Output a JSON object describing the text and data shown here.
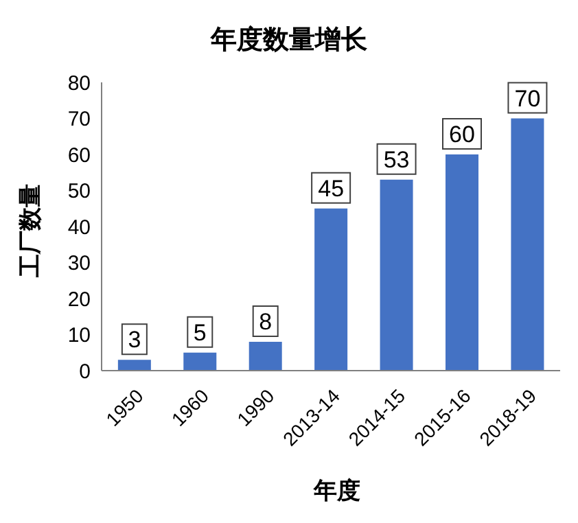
{
  "chart_data": {
    "type": "bar",
    "title": "年度数量增长",
    "xlabel": "年度",
    "ylabel": "工厂数量",
    "categories": [
      "1950",
      "1960",
      "1990",
      "2013-14",
      "2014-15",
      "2015-16",
      "2018-19"
    ],
    "values": [
      3,
      5,
      8,
      45,
      53,
      60,
      70
    ],
    "color": "#4472c4",
    "ylim": [
      0,
      80
    ],
    "yticks": [
      0,
      10,
      20,
      30,
      40,
      50,
      60,
      70,
      80
    ],
    "grid": false,
    "legend": false,
    "data_labels": true
  }
}
